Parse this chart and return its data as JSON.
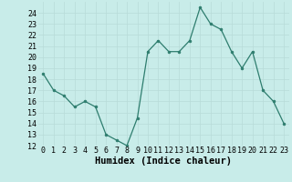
{
  "x": [
    0,
    1,
    2,
    3,
    4,
    5,
    6,
    7,
    8,
    9,
    10,
    11,
    12,
    13,
    14,
    15,
    16,
    17,
    18,
    19,
    20,
    21,
    22,
    23
  ],
  "y": [
    18.5,
    17,
    16.5,
    15.5,
    16,
    15.5,
    13,
    12.5,
    12,
    14.5,
    20.5,
    21.5,
    20.5,
    20.5,
    21.5,
    24.5,
    23,
    22.5,
    20.5,
    19,
    20.5,
    17,
    16,
    14
  ],
  "line_color": "#2e7d6e",
  "marker_color": "#2e7d6e",
  "bg_color": "#c8ece9",
  "grid_color": "#b8dbd8",
  "xlabel": "Humidex (Indice chaleur)",
  "ylim": [
    12,
    25
  ],
  "xlim": [
    -0.5,
    23.5
  ],
  "yticks": [
    12,
    13,
    14,
    15,
    16,
    17,
    18,
    19,
    20,
    21,
    22,
    23,
    24
  ],
  "xticks": [
    0,
    1,
    2,
    3,
    4,
    5,
    6,
    7,
    8,
    9,
    10,
    11,
    12,
    13,
    14,
    15,
    16,
    17,
    18,
    19,
    20,
    21,
    22,
    23
  ],
  "xlabel_fontsize": 7.5,
  "tick_fontsize": 6.0
}
